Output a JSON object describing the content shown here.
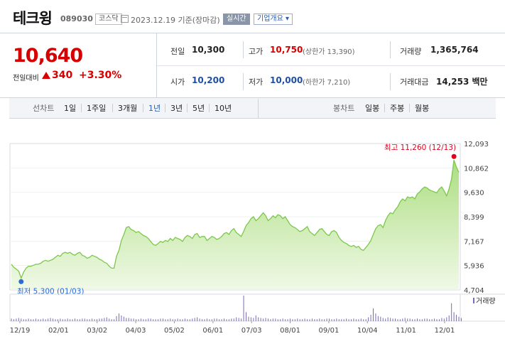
{
  "stock": {
    "name": "테크윙",
    "code": "089030",
    "market": "코스닥",
    "date": "2023.12.19 기준(장마감)",
    "realtime": "실시간",
    "overview": "기업개요 ▾"
  },
  "quote": {
    "price": "10,640",
    "change_label": "전일대비",
    "change": "340",
    "change_pct": "+3.30%",
    "prev_label": "전일",
    "prev": "10,300",
    "high_label": "고가",
    "high": "10,750",
    "upper_limit": "(상한가 13,390)",
    "volume_label": "거래량",
    "volume": "1,365,764",
    "open_label": "시가",
    "open": "10,200",
    "low_label": "저가",
    "low": "10,000",
    "lower_limit": "(하한가 7,210)",
    "amount_label": "거래대금",
    "amount": "14,253 백만"
  },
  "periods": {
    "title": "선차트",
    "items": [
      "1일",
      "1주일",
      "3개월",
      "1년",
      "3년",
      "5년",
      "10년"
    ],
    "active": "1년",
    "candle_title": "봉차트",
    "candle_items": [
      "일봉",
      "주봉",
      "월봉"
    ]
  },
  "chart_data": {
    "type": "area",
    "y_ticks": [
      "12,093",
      "10,862",
      "9,630",
      "8,399",
      "7,167",
      "5,936",
      "4,704"
    ],
    "ylim": [
      4704,
      12093
    ],
    "x_ticks": [
      "12/19",
      "02/01",
      "03/02",
      "04/03",
      "05/02",
      "06/01",
      "07/03",
      "08/01",
      "09/01",
      "10/04",
      "11/01",
      "12/01"
    ],
    "max_label": "최고 11,260 (12/13)",
    "min_label": "최저 5,300 (01/03)",
    "volume_label": "거래량",
    "colors": {
      "line": "#7cc84a",
      "fill": "#c9ecaa",
      "max": "#e0001a",
      "min": "#2b6cd4"
    },
    "prices": [
      6000,
      5850,
      5750,
      5650,
      5300,
      5600,
      5800,
      5900,
      5900,
      5950,
      6000,
      6000,
      6050,
      6150,
      6200,
      6150,
      6200,
      6250,
      6350,
      6450,
      6400,
      6550,
      6600,
      6550,
      6600,
      6500,
      6450,
      6550,
      6600,
      6450,
      6400,
      6300,
      6350,
      6450,
      6400,
      6350,
      6250,
      6200,
      6100,
      6050,
      5900,
      5800,
      5800,
      6400,
      6700,
      7200,
      7500,
      7850,
      7900,
      7750,
      7700,
      7600,
      7650,
      7550,
      7450,
      7400,
      7300,
      7150,
      7000,
      6950,
      7050,
      7150,
      7100,
      7200,
      7150,
      7300,
      7200,
      7350,
      7300,
      7250,
      7150,
      7350,
      7450,
      7400,
      7300,
      7500,
      7550,
      7350,
      7400,
      7400,
      7200,
      7300,
      7400,
      7350,
      7250,
      7300,
      7400,
      7550,
      7600,
      7500,
      7700,
      7800,
      7600,
      7500,
      7400,
      7650,
      7950,
      8100,
      8300,
      8400,
      8200,
      8300,
      8450,
      8600,
      8450,
      8200,
      8300,
      8450,
      8350,
      8500,
      8450,
      8300,
      8400,
      8200,
      8000,
      7900,
      7850,
      7750,
      7650,
      7700,
      7800,
      7900,
      7650,
      7550,
      7450,
      7600,
      7750,
      7800,
      7650,
      7500,
      7450,
      7650,
      7700,
      7600,
      7350,
      7200,
      7100,
      7050,
      6950,
      6900,
      6950,
      6850,
      6900,
      6750,
      6700,
      6850,
      7000,
      7200,
      7500,
      7800,
      7950,
      8000,
      7850,
      8200,
      8450,
      8600,
      8550,
      8750,
      8900,
      9150,
      9300,
      9200,
      9400,
      9350,
      9400,
      9300,
      9550,
      9650,
      9800,
      9900,
      9850,
      9750,
      9700,
      9650,
      9600,
      9800,
      9900,
      9700,
      9450,
      9800,
      10300,
      11260,
      10900,
      10640
    ],
    "volume": [
      4,
      3,
      4,
      5,
      4,
      3,
      3,
      4,
      3,
      3,
      4,
      3,
      3,
      4,
      3,
      4,
      5,
      4,
      3,
      3,
      4,
      3,
      3,
      4,
      3,
      3,
      4,
      3,
      3,
      4,
      4,
      3,
      3,
      4,
      3,
      3,
      4,
      4,
      5,
      6,
      4,
      3,
      3,
      8,
      12,
      9,
      7,
      5,
      5,
      4,
      4,
      3,
      3,
      4,
      3,
      3,
      4,
      4,
      3,
      3,
      3,
      4,
      4,
      3,
      3,
      4,
      3,
      3,
      4,
      3,
      3,
      4,
      3,
      3,
      4,
      5,
      6,
      4,
      3,
      3,
      4,
      3,
      3,
      4,
      4,
      3,
      3,
      4,
      3,
      3,
      4,
      4,
      6,
      5,
      4,
      40,
      14,
      7,
      6,
      5,
      9,
      6,
      5,
      4,
      5,
      4,
      3,
      4,
      4,
      3,
      3,
      4,
      3,
      3,
      4,
      3,
      3,
      4,
      3,
      3,
      4,
      3,
      3,
      4,
      3,
      3,
      4,
      3,
      3,
      4,
      4,
      3,
      3,
      4,
      3,
      3,
      3,
      4,
      3,
      3,
      4,
      3,
      3,
      4,
      3,
      3,
      6,
      10,
      20,
      12,
      8,
      7,
      5,
      4,
      6,
      5,
      4,
      4,
      3,
      3,
      4,
      5,
      4,
      4,
      3,
      3,
      4,
      3,
      3,
      4,
      4,
      3,
      3,
      4,
      3,
      3,
      5,
      4,
      6,
      9,
      28,
      14,
      10,
      7,
      5
    ]
  }
}
